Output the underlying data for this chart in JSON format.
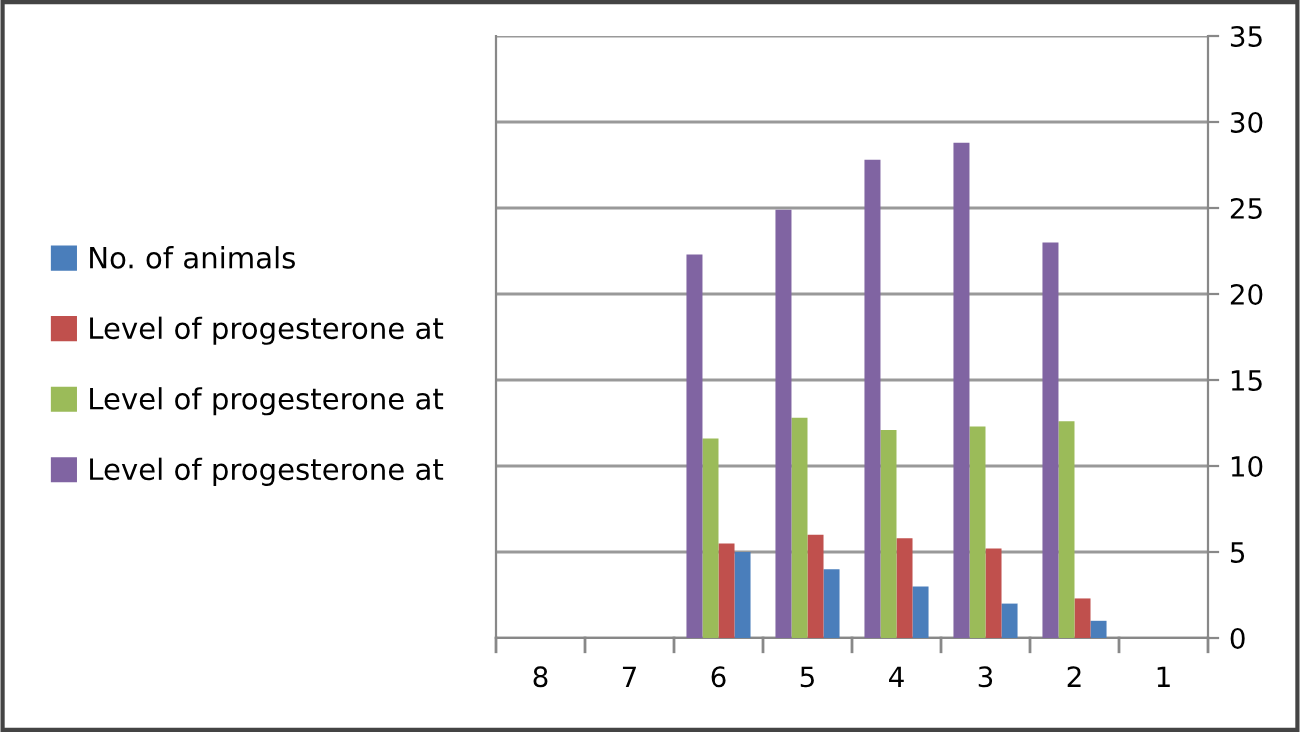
{
  "chart_data": {
    "type": "bar",
    "categories": [
      "8",
      "7",
      "6",
      "5",
      "4",
      "3",
      "2",
      "1"
    ],
    "series": [
      {
        "name": "No. of animals",
        "color": "#4a7ebb",
        "values": [
          null,
          null,
          5,
          4,
          3,
          2,
          1,
          null
        ]
      },
      {
        "name": "Level of progesterone at",
        "color": "#c0504d",
        "values": [
          null,
          null,
          5.5,
          6.0,
          5.8,
          5.2,
          2.3,
          null
        ]
      },
      {
        "name": "Level of progesterone at",
        "color": "#9bbb59",
        "values": [
          null,
          null,
          11.6,
          12.8,
          12.1,
          12.3,
          12.6,
          null
        ]
      },
      {
        "name": "Level of progesterone at",
        "color": "#8064a2",
        "values": [
          null,
          null,
          22.3,
          24.9,
          27.8,
          28.8,
          23.0,
          null
        ]
      }
    ],
    "ylim": [
      0,
      35
    ],
    "yticks": [
      0,
      5,
      10,
      15,
      20,
      25,
      30,
      35
    ],
    "grid": "y",
    "legend": "left"
  }
}
